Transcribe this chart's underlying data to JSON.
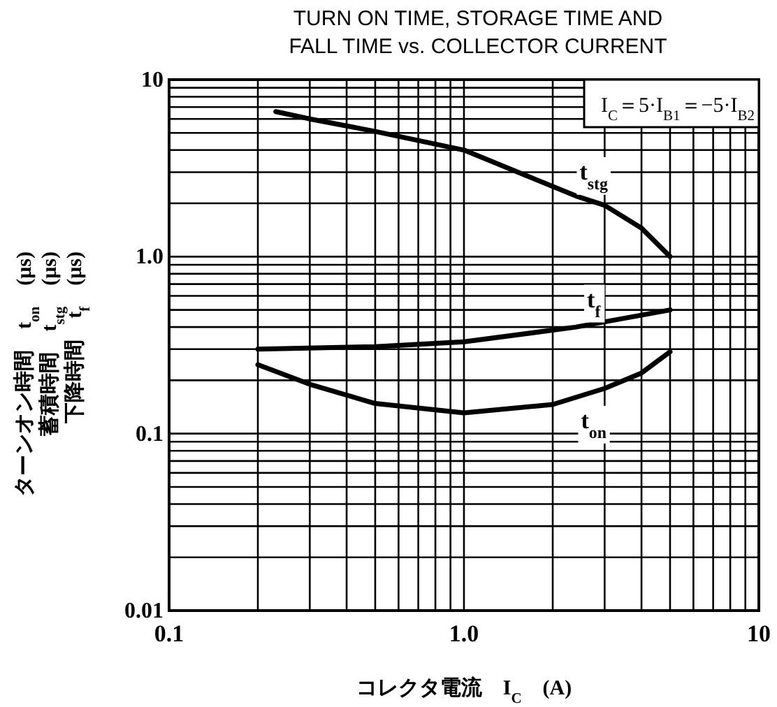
{
  "chart_data": {
    "type": "line",
    "title": "TURN ON TIME, STORAGE TIME AND\nFALL TIME vs. COLLECTOR CURRENT",
    "xlabel": "コレクタ電流　I$_{C}$　(A)",
    "ylabel": "ターンオン時間　t$_{on}$　(μs)\n蓄積時間　t$_{stg}$　(μs)\n下降時間　t$_{f}$　(μs)",
    "log": "xy",
    "grid": true,
    "line_style": "solid",
    "xlim": [
      0.1,
      10
    ],
    "ylim": [
      0.01,
      10
    ],
    "xticks": [
      0.1,
      {
        "value": 0.2,
        "label": null
      },
      {
        "value": 0.3,
        "label": null
      },
      {
        "value": 0.4,
        "label": null
      },
      {
        "value": 0.5,
        "label": null
      },
      {
        "value": 0.6,
        "label": null
      },
      {
        "value": 0.7,
        "label": null
      },
      {
        "value": 0.8,
        "label": null
      },
      {
        "value": 0.9,
        "label": null
      },
      {
        "value": 1,
        "label": "1.0"
      },
      {
        "value": 2,
        "label": null
      },
      {
        "value": 3,
        "label": null
      },
      {
        "value": 4,
        "label": null
      },
      {
        "value": 5,
        "label": null
      },
      {
        "value": 6,
        "label": null
      },
      {
        "value": 7,
        "label": null
      },
      {
        "value": 8,
        "label": null
      },
      {
        "value": 9,
        "label": null
      },
      10
    ],
    "yticks": [
      0.01,
      {
        "value": 0.02,
        "label": null
      },
      {
        "value": 0.03,
        "label": null
      },
      {
        "value": 0.04,
        "label": null
      },
      {
        "value": 0.05,
        "label": null
      },
      {
        "value": 0.06,
        "label": null
      },
      {
        "value": 0.07,
        "label": null
      },
      {
        "value": 0.08,
        "label": null
      },
      {
        "value": 0.09,
        "label": null
      },
      0.1,
      {
        "value": 0.2,
        "label": null
      },
      {
        "value": 0.3,
        "label": null
      },
      {
        "value": 0.4,
        "label": null
      },
      {
        "value": 0.5,
        "label": null
      },
      {
        "value": 0.6,
        "label": null
      },
      {
        "value": 0.7,
        "label": null
      },
      {
        "value": 0.8,
        "label": null
      },
      {
        "value": 0.9,
        "label": null
      },
      {
        "value": 1,
        "label": "1.0"
      },
      {
        "value": 2,
        "label": null
      },
      {
        "value": 3,
        "label": null
      },
      {
        "value": 4,
        "label": null
      },
      {
        "value": 5,
        "label": null
      },
      {
        "value": 6,
        "label": null
      },
      {
        "value": 7,
        "label": null
      },
      {
        "value": 8,
        "label": null
      },
      {
        "value": 9,
        "label": null
      },
      10
    ],
    "series": [
      {
        "name": "t$_{stg}$",
        "color": "#000000",
        "x": [
          0.23,
          0.3,
          0.5,
          1.0,
          2.4,
          3.0,
          4.0,
          5.0
        ],
        "values": [
          6.6,
          6.0,
          5.1,
          4.0,
          2.2,
          1.95,
          1.45,
          1.0
        ]
      },
      {
        "name": "t$_{f}$",
        "color": "#000000",
        "x": [
          0.2,
          0.5,
          1.0,
          2.4,
          5.0
        ],
        "values": [
          0.3,
          0.31,
          0.33,
          0.4,
          0.5
        ]
      },
      {
        "name": "t$_{on}$",
        "color": "#000000",
        "x": [
          0.2,
          0.3,
          0.5,
          1.0,
          2.0,
          3.0,
          4.0,
          5.0
        ],
        "values": [
          0.245,
          0.19,
          0.148,
          0.131,
          0.146,
          0.18,
          0.22,
          0.29
        ]
      }
    ],
    "annotations": [
      "I$_{C}$＝5·I$_{B1}$＝−5·I$_{B2}$"
    ]
  }
}
